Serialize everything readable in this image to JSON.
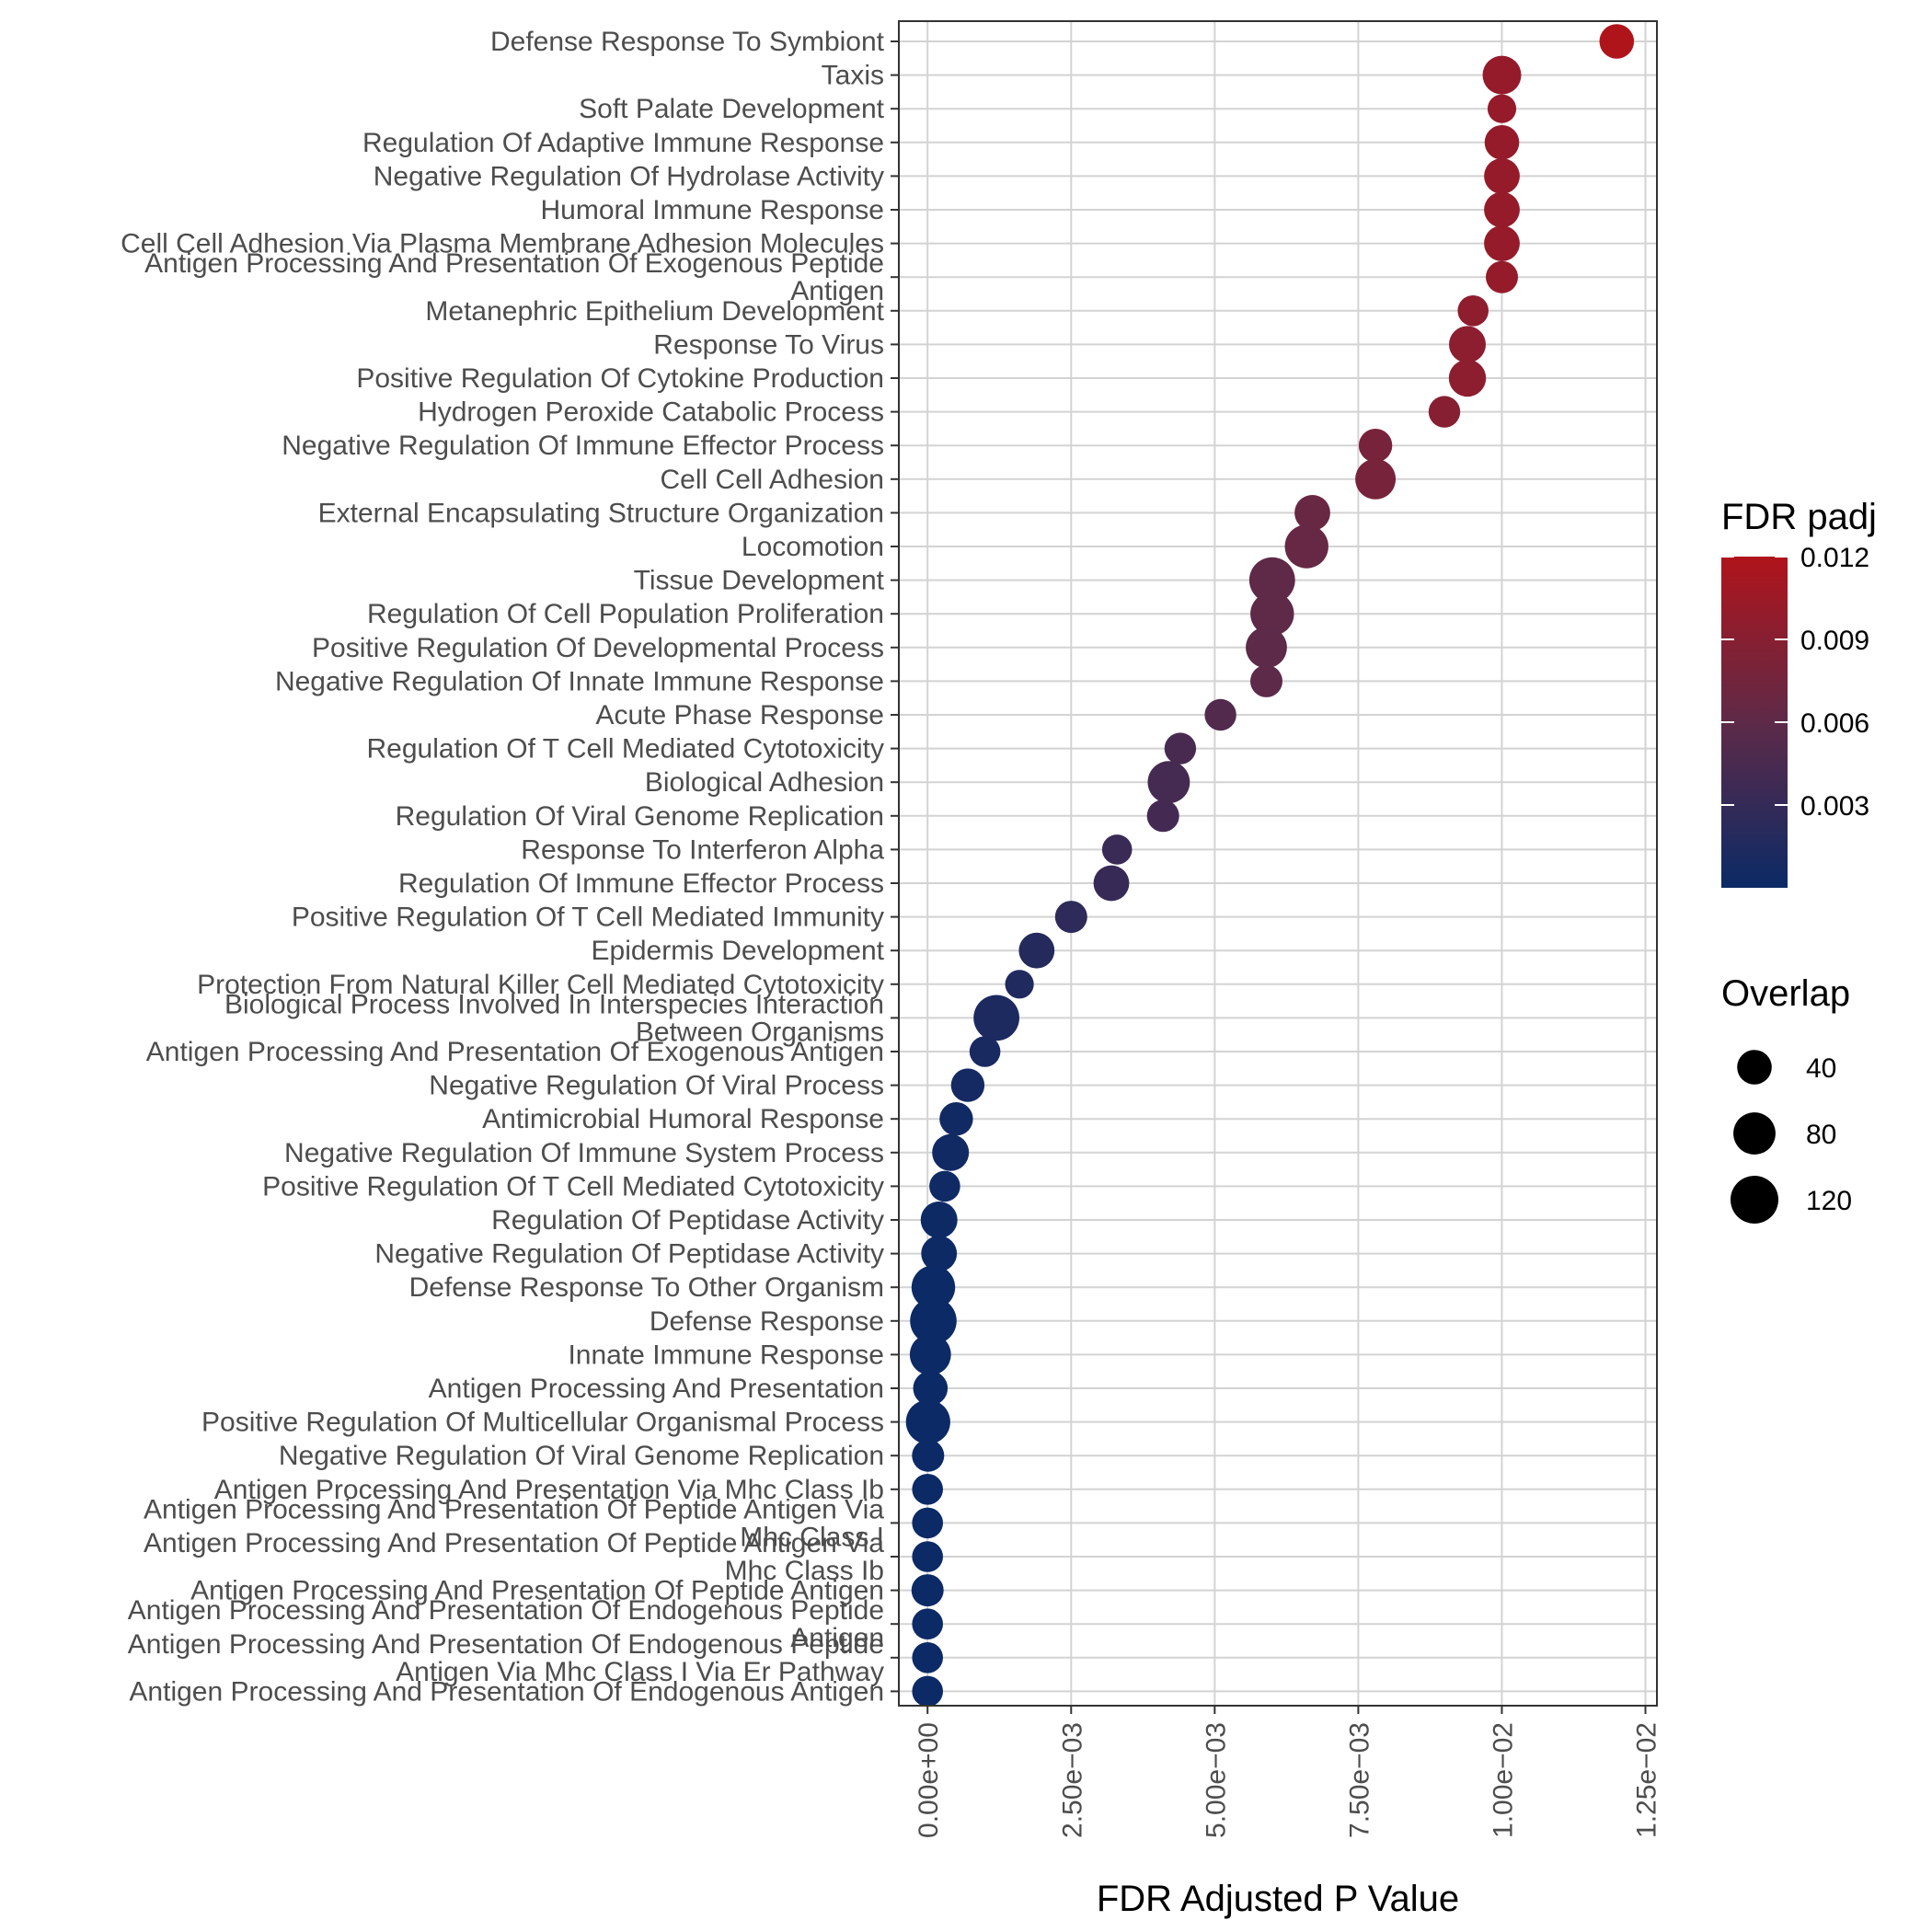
{
  "chart_data": {
    "type": "scatter",
    "xlabel": "FDR Adjusted P Value",
    "ylabel": "",
    "xlim": [
      -0.0005,
      0.0127
    ],
    "x_ticks": [
      0,
      0.0025,
      0.005,
      0.0075,
      0.01,
      0.0125
    ],
    "x_tick_labels": [
      "0.00e+00",
      "2.50e−03",
      "5.00e−03",
      "7.50e−03",
      "1.00e−02",
      "1.25e−02"
    ],
    "grid": true,
    "color_legend": {
      "title": "FDR padj",
      "min": 0,
      "max": 0.012,
      "low_color": "#0b2a66",
      "high_color": "#b0141b",
      "ticks": [
        0.003,
        0.006,
        0.009,
        0.012
      ],
      "tick_labels": [
        "0.003",
        "0.006",
        "0.009",
        "0.012"
      ]
    },
    "size_legend": {
      "title": "Overlap",
      "values": [
        40,
        80,
        120
      ],
      "labels": [
        "40",
        "80",
        "120"
      ]
    },
    "points": [
      {
        "label": [
          "Defense Response To Symbiont"
        ],
        "x": 0.012,
        "overlap": 40
      },
      {
        "label": [
          "Taxis"
        ],
        "x": 0.01,
        "overlap": 60
      },
      {
        "label": [
          "Soft Palate Development"
        ],
        "x": 0.01,
        "overlap": 18
      },
      {
        "label": [
          "Regulation Of Adaptive Immune Response"
        ],
        "x": 0.01,
        "overlap": 40
      },
      {
        "label": [
          "Negative Regulation Of Hydrolase Activity"
        ],
        "x": 0.01,
        "overlap": 45
      },
      {
        "label": [
          "Humoral Immune Response"
        ],
        "x": 0.01,
        "overlap": 45
      },
      {
        "label": [
          "Cell Cell Adhesion Via Plasma Membrane Adhesion Molecules"
        ],
        "x": 0.01,
        "overlap": 45
      },
      {
        "label": [
          "Antigen Processing And Presentation Of Exogenous Peptide",
          "Antigen"
        ],
        "x": 0.01,
        "overlap": 30
      },
      {
        "label": [
          "Metanephric Epithelium Development"
        ],
        "x": 0.0095,
        "overlap": 25
      },
      {
        "label": [
          "Response To Virus"
        ],
        "x": 0.0094,
        "overlap": 50
      },
      {
        "label": [
          "Positive Regulation Of Cytokine Production"
        ],
        "x": 0.0094,
        "overlap": 52
      },
      {
        "label": [
          "Hydrogen Peroxide Catabolic Process"
        ],
        "x": 0.009,
        "overlap": 28
      },
      {
        "label": [
          "Negative Regulation Of Immune Effector Process"
        ],
        "x": 0.0078,
        "overlap": 35
      },
      {
        "label": [
          "Cell Cell Adhesion"
        ],
        "x": 0.0078,
        "overlap": 70
      },
      {
        "label": [
          "External Encapsulating Structure Organization"
        ],
        "x": 0.0067,
        "overlap": 45
      },
      {
        "label": [
          "Locomotion"
        ],
        "x": 0.0066,
        "overlap": 90
      },
      {
        "label": [
          "Tissue Development"
        ],
        "x": 0.006,
        "overlap": 105
      },
      {
        "label": [
          "Regulation Of Cell Population Proliferation"
        ],
        "x": 0.006,
        "overlap": 90
      },
      {
        "label": [
          "Positive Regulation Of Developmental Process"
        ],
        "x": 0.0059,
        "overlap": 75
      },
      {
        "label": [
          "Negative Regulation Of Innate Immune Response"
        ],
        "x": 0.0059,
        "overlap": 30
      },
      {
        "label": [
          "Acute Phase Response"
        ],
        "x": 0.0051,
        "overlap": 28
      },
      {
        "label": [
          "Regulation Of T Cell Mediated Cytotoxicity"
        ],
        "x": 0.0044,
        "overlap": 28
      },
      {
        "label": [
          "Biological Adhesion"
        ],
        "x": 0.0042,
        "overlap": 80
      },
      {
        "label": [
          "Regulation Of Viral Genome Replication"
        ],
        "x": 0.0041,
        "overlap": 30
      },
      {
        "label": [
          "Response To Interferon Alpha"
        ],
        "x": 0.0033,
        "overlap": 22
      },
      {
        "label": [
          "Regulation Of Immune Effector Process"
        ],
        "x": 0.0032,
        "overlap": 45
      },
      {
        "label": [
          "Positive Regulation Of T Cell Mediated Immunity"
        ],
        "x": 0.0025,
        "overlap": 30
      },
      {
        "label": [
          "Epidermis Development"
        ],
        "x": 0.0019,
        "overlap": 45
      },
      {
        "label": [
          "Protection From Natural Killer Cell Mediated Cytotoxicity"
        ],
        "x": 0.0016,
        "overlap": 18
      },
      {
        "label": [
          "Biological Process Involved In Interspecies Interaction",
          "Between Organisms"
        ],
        "x": 0.0012,
        "overlap": 105
      },
      {
        "label": [
          "Antigen Processing And Presentation Of Exogenous Antigen"
        ],
        "x": 0.001,
        "overlap": 25
      },
      {
        "label": [
          "Negative Regulation Of Viral Process"
        ],
        "x": 0.0007,
        "overlap": 35
      },
      {
        "label": [
          "Antimicrobial Humoral Response"
        ],
        "x": 0.0005,
        "overlap": 35
      },
      {
        "label": [
          "Negative Regulation Of Immune System Process"
        ],
        "x": 0.0004,
        "overlap": 50
      },
      {
        "label": [
          "Positive Regulation Of T Cell Mediated Cytotoxicity"
        ],
        "x": 0.0003,
        "overlap": 25
      },
      {
        "label": [
          "Regulation Of Peptidase Activity"
        ],
        "x": 0.0002,
        "overlap": 50
      },
      {
        "label": [
          "Negative Regulation Of Peptidase Activity"
        ],
        "x": 0.0002,
        "overlap": 45
      },
      {
        "label": [
          "Defense Response To Other Organism"
        ],
        "x": 0.0001,
        "overlap": 90
      },
      {
        "label": [
          "Defense Response"
        ],
        "x": 0.0001,
        "overlap": 110
      },
      {
        "label": [
          "Innate Immune Response"
        ],
        "x": 5e-05,
        "overlap": 75
      },
      {
        "label": [
          "Antigen Processing And Presentation"
        ],
        "x": 5e-05,
        "overlap": 40
      },
      {
        "label": [
          "Positive Regulation Of Multicellular Organismal Process"
        ],
        "x": 1e-05,
        "overlap": 95
      },
      {
        "label": [
          "Negative Regulation Of Viral Genome Replication"
        ],
        "x": 1e-05,
        "overlap": 30
      },
      {
        "label": [
          "Antigen Processing And Presentation Via Mhc Class Ib"
        ],
        "x": 0.0,
        "overlap": 25
      },
      {
        "label": [
          "Antigen Processing And Presentation Of Peptide Antigen Via",
          "Mhc Class I"
        ],
        "x": 0.0,
        "overlap": 25
      },
      {
        "label": [
          "Antigen Processing And Presentation Of Peptide Antigen Via",
          "Mhc Class Ib"
        ],
        "x": 0.0,
        "overlap": 25
      },
      {
        "label": [
          "Antigen Processing And Presentation Of Peptide Antigen"
        ],
        "x": 0.0,
        "overlap": 30
      },
      {
        "label": [
          "Antigen Processing And Presentation Of Endogenous Peptide",
          "Antigen"
        ],
        "x": 0.0,
        "overlap": 25
      },
      {
        "label": [
          "Antigen Processing And Presentation Of Endogenous Peptide",
          "Antigen Via Mhc Class I Via Er Pathway"
        ],
        "x": 0.0,
        "overlap": 25
      },
      {
        "label": [
          "Antigen Processing And Presentation Of Endogenous Antigen"
        ],
        "x": 0.0,
        "overlap": 25
      }
    ]
  }
}
